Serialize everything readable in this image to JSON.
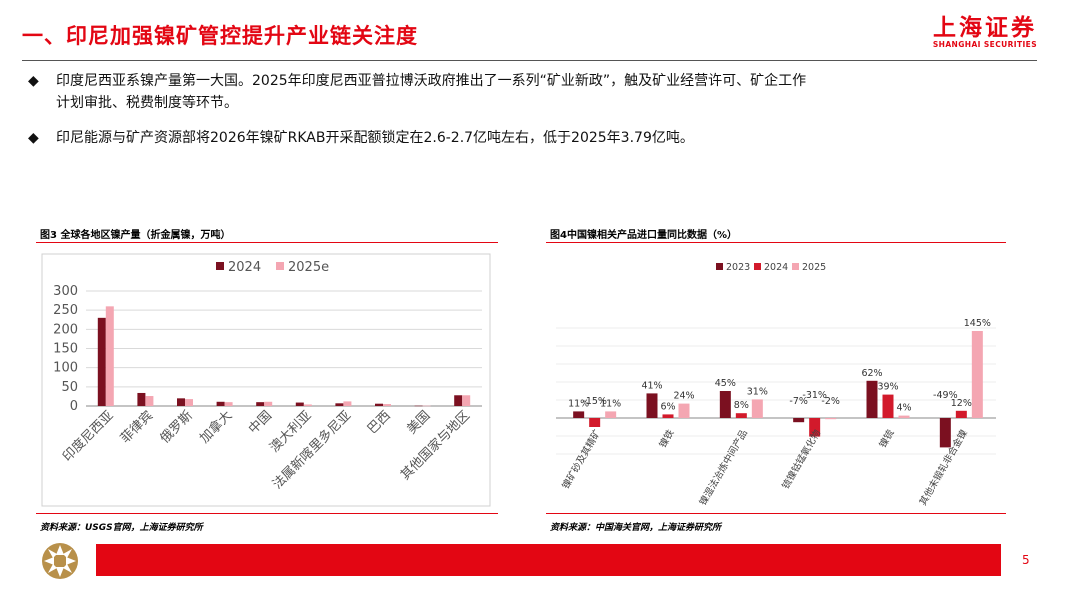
{
  "header": {
    "title": "一、印尼加强镍矿管控提升产业链关注度",
    "logo_cn": "上海证券",
    "logo_en": "SHANGHAI SECURITIES"
  },
  "bullets": [
    {
      "marker": "◆",
      "lines": [
        "印度尼西亚系镍产量第一大国。2025年印度尼西亚普拉博沃政府推出了一系列“矿业新政”，触及矿业经营许可、矿企工作",
        "计划审批、税费制度等环节。"
      ]
    },
    {
      "marker": "◆",
      "lines": [
        "印尼能源与矿产资源部将2026年镍矿RKAB开采配额锁定在2.6-2.7亿吨左右，低于2025年3.79亿吨。"
      ]
    }
  ],
  "figure3": {
    "caption": "图3 全球各地区镍产量（折金属镍，万吨）",
    "source": "资料来源：USGS官网，上海证券研究所"
  },
  "figure4": {
    "caption": "图4中国镍相关产品进口量同比数据（%）",
    "source": "资料来源：中国海关官网，上海证券研究所"
  },
  "footer": {
    "page": "5"
  },
  "colors": {
    "accent": "#e30613",
    "s1": "#7b1020",
    "s2": "#d21a2b",
    "s3": "#f4a6b2"
  },
  "chart_data": [
    {
      "type": "bar",
      "categories": [
        "印度尼西亚",
        "菲律宾",
        "俄罗斯",
        "加拿大",
        "中国",
        "澳大利亚",
        "法属新喀里多尼亚",
        "巴西",
        "美国",
        "其他国家与地区"
      ],
      "series": [
        {
          "name": "2024",
          "values": [
            230,
            34,
            20,
            11,
            10,
            9,
            7,
            6,
            0.8,
            28
          ]
        },
        {
          "name": "2025e",
          "values": [
            260,
            26,
            18,
            10,
            11,
            4,
            12,
            5,
            0.8,
            28
          ]
        }
      ],
      "ylim": [
        0,
        300
      ],
      "yticks": [
        0,
        50,
        100,
        150,
        200,
        250,
        300
      ],
      "grid": true,
      "legend": "top"
    },
    {
      "type": "bar",
      "categories": [
        "镍矿砂及其精矿",
        "镍铁",
        "镍湿法冶炼中间产品",
        "锍镍钴锰氧化物",
        "镍锍",
        "其他未锻轧非合金镍"
      ],
      "series": [
        {
          "name": "2023",
          "values": [
            11,
            41,
            45,
            -7,
            62,
            -49
          ]
        },
        {
          "name": "2024",
          "values": [
            -15,
            6,
            8,
            -31,
            39,
            12
          ]
        },
        {
          "name": "2025",
          "values": [
            11,
            24,
            31,
            -2,
            4,
            145
          ]
        }
      ],
      "labels": [
        [
          "11%",
          "-15%",
          "11%"
        ],
        [
          "41%",
          "6%",
          "24%"
        ],
        [
          "45%",
          "8%",
          "31%"
        ],
        [
          "-7%",
          "-31%",
          "-2%"
        ],
        [
          "62%",
          "39%",
          "4%"
        ],
        [
          "-49%",
          "12%",
          "145%"
        ]
      ],
      "legend": "top",
      "grid": true
    }
  ]
}
